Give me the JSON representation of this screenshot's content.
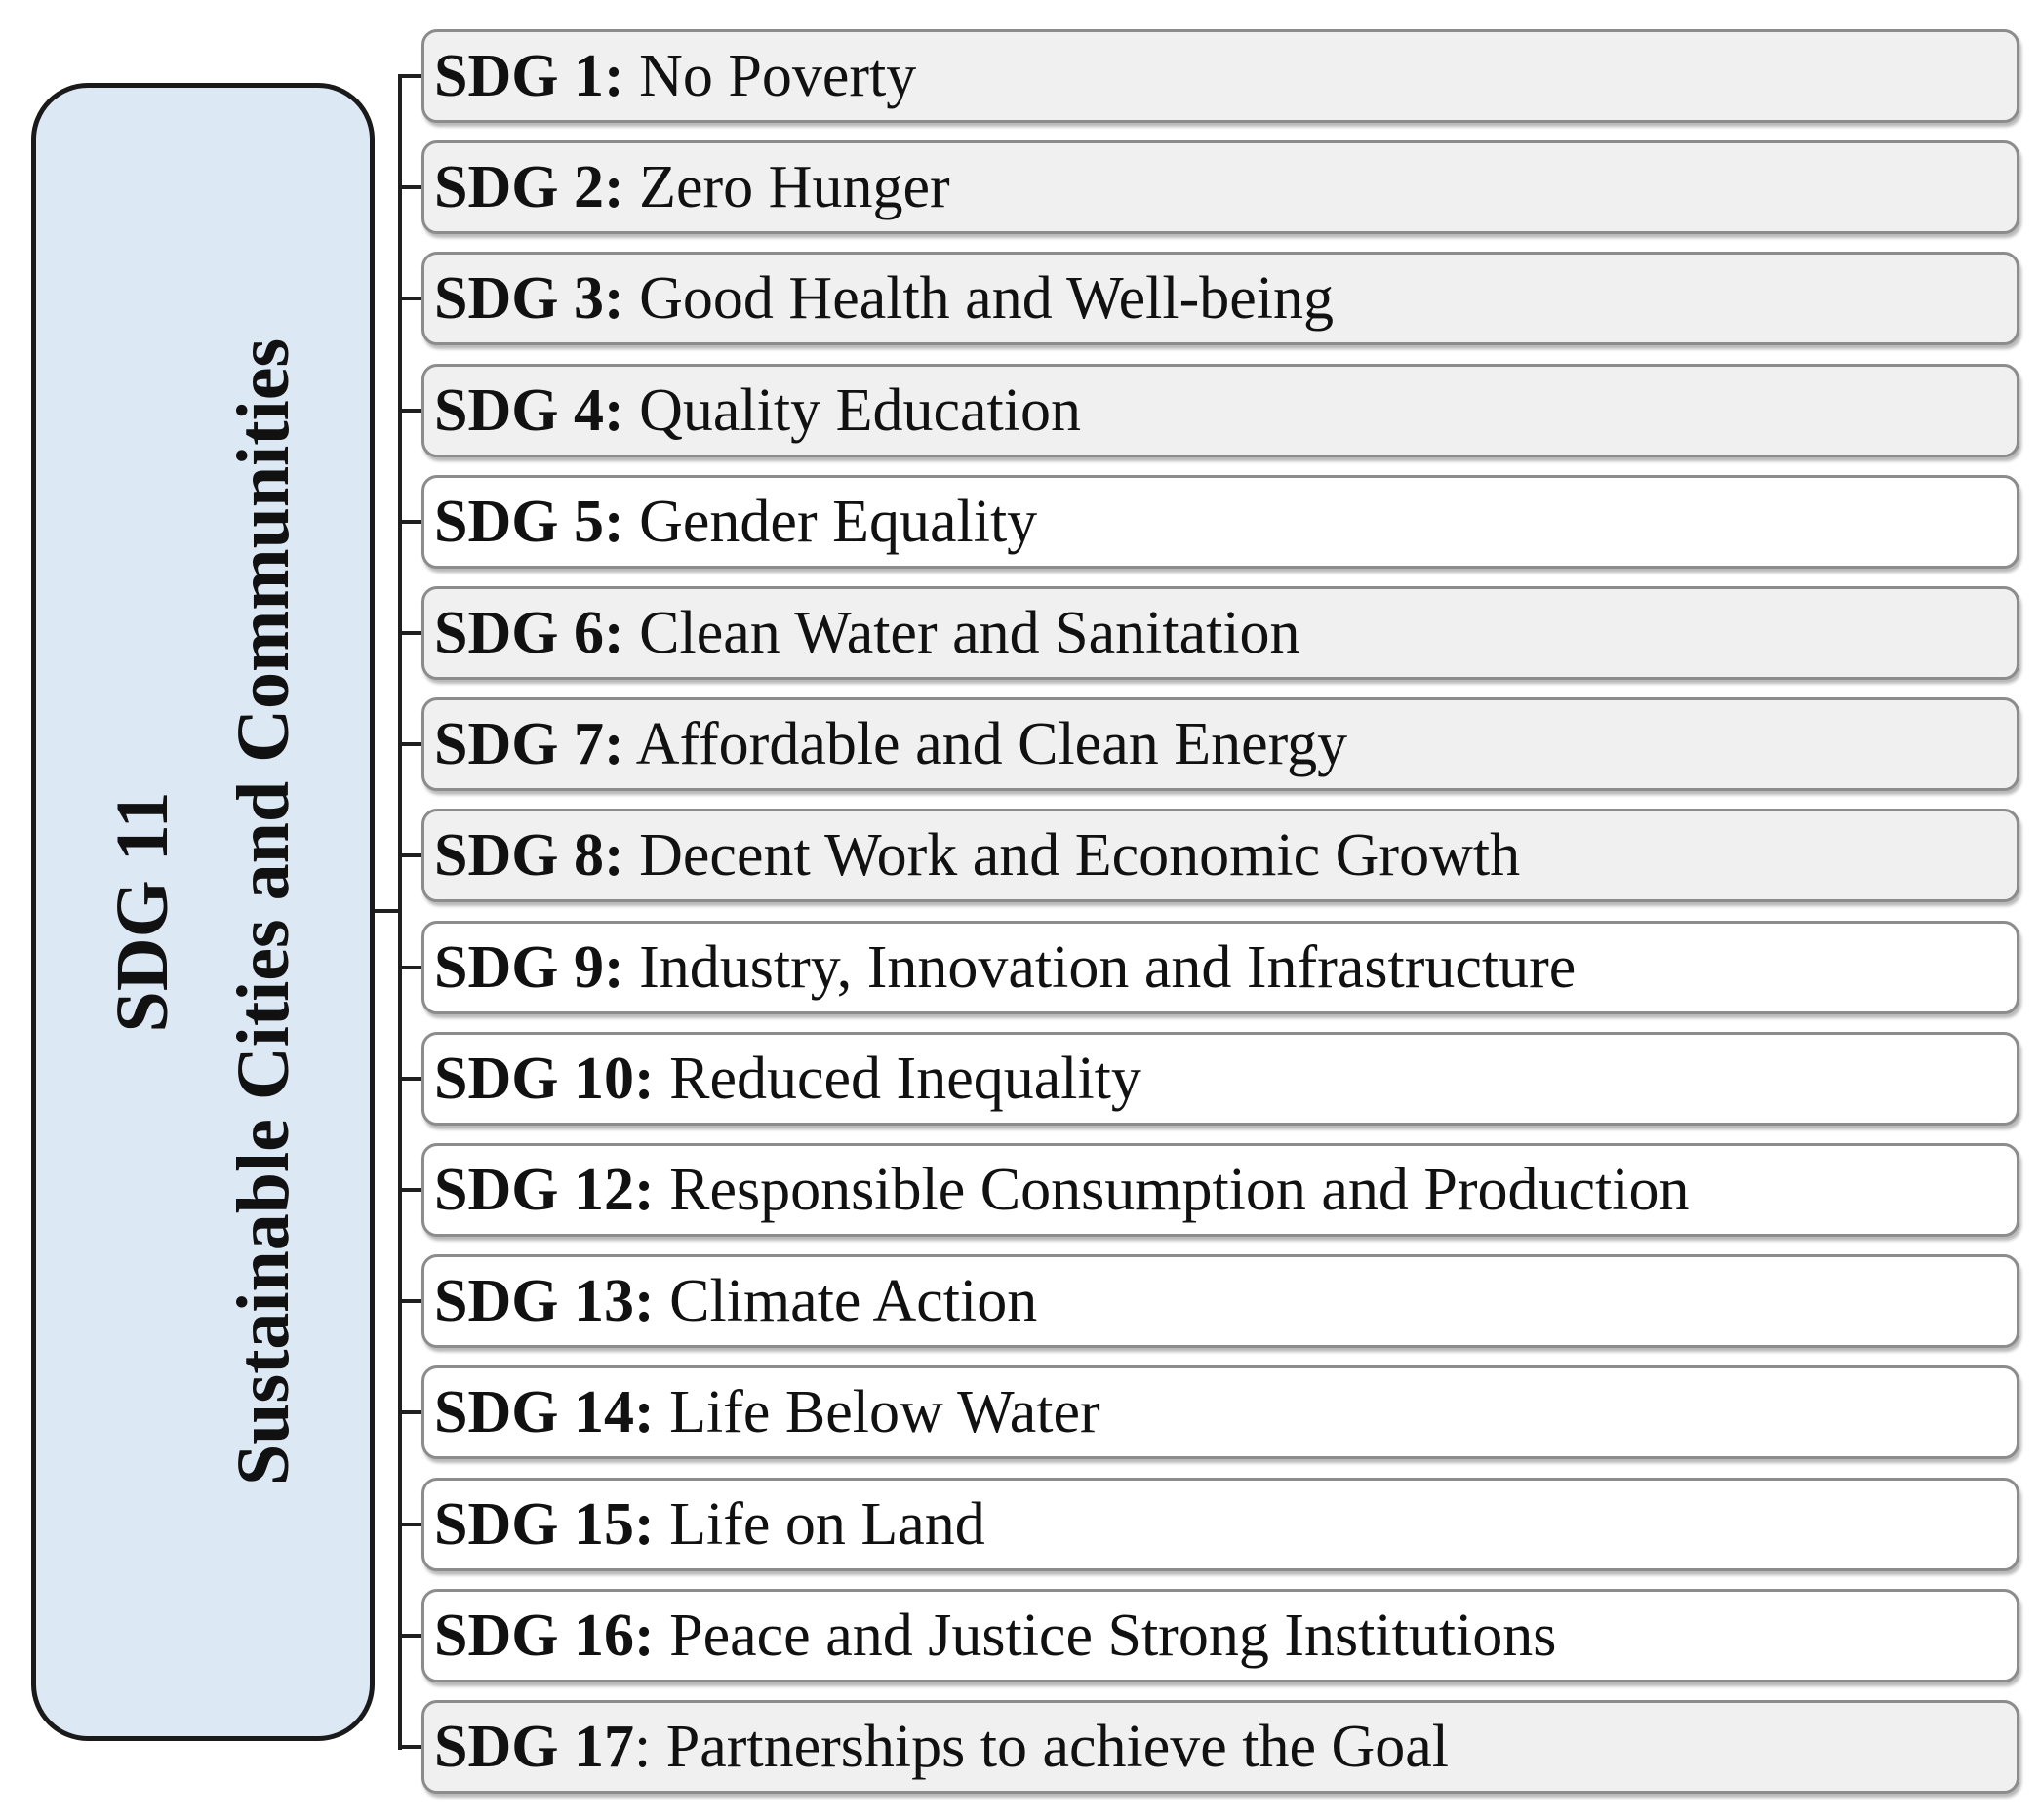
{
  "central": {
    "line1": "SDG 11",
    "line2": "Sustainable Cities and Communities"
  },
  "items": [
    {
      "code": "SDG 1",
      "sep": ":",
      "label": " No Poverty",
      "shade": "shaded"
    },
    {
      "code": "SDG 2",
      "sep": ":",
      "label": " Zero Hunger",
      "shade": "shaded"
    },
    {
      "code": "SDG 3",
      "sep": ":",
      "label": " Good Health and Well-being",
      "shade": "shaded"
    },
    {
      "code": "SDG 4",
      "sep": ":",
      "label": " Quality Education",
      "shade": "shaded"
    },
    {
      "code": "SDG 5",
      "sep": ":",
      "label": " Gender Equality",
      "shade": "plain"
    },
    {
      "code": "SDG 6",
      "sep": ":",
      "label": " Clean Water and Sanitation",
      "shade": "shaded"
    },
    {
      "code": "SDG 7",
      "sep": ":",
      "label": " Affordable and Clean Energy",
      "shade": "shaded"
    },
    {
      "code": "SDG 8",
      "sep": ":",
      "label": " Decent Work and Economic Growth",
      "shade": "shaded"
    },
    {
      "code": "SDG 9",
      "sep": ":",
      "label": " Industry, Innovation and Infrastructure",
      "shade": "plain"
    },
    {
      "code": "SDG 10",
      "sep": ":",
      "label": " Reduced Inequality",
      "shade": "plain"
    },
    {
      "code": "SDG 12",
      "sep": ":",
      "label": " Responsible Consumption and Production",
      "shade": "plain"
    },
    {
      "code": "SDG 13",
      "sep": ":",
      "label": " Climate Action",
      "shade": "plain"
    },
    {
      "code": "SDG 14",
      "sep": ":",
      "label": " Life Below Water",
      "shade": "plain"
    },
    {
      "code": "SDG 15",
      "sep": ":",
      "label": " Life on Land",
      "shade": "plain"
    },
    {
      "code": "SDG 16",
      "sep": ":",
      "label": " Peace and Justice Strong Institutions",
      "shade": "plain"
    },
    {
      "code": "SDG 17",
      "sep": ":",
      "label": " Partnerships to achieve the Goal",
      "shade": "shaded",
      "regular_sep": true
    }
  ]
}
